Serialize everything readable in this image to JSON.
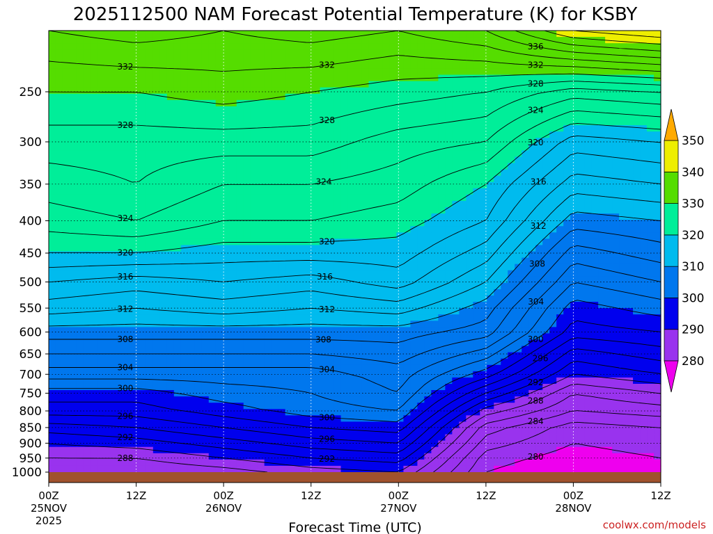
{
  "title": "2025112500 NAM Forecast Potential Temperature (K) for KSBY",
  "credit": "coolwx.com/models",
  "chart_data": {
    "type": "contour",
    "title": "2025112500 NAM Forecast Potential Temperature (K) for KSBY",
    "xlabel": "Forecast Time (UTC)",
    "ylabel": "",
    "y_scale": "log-pressure",
    "yaxis_reversed": true,
    "xlim": [
      "2025-11-25 00Z",
      "2025-11-28 12Z"
    ],
    "ylim": [
      1000,
      200
    ],
    "grid": true,
    "x_ticks": [
      {
        "time": "2025-11-25 00Z",
        "lines": [
          "00Z",
          "25NOV",
          "2025"
        ]
      },
      {
        "time": "2025-11-25 12Z",
        "lines": [
          "12Z"
        ]
      },
      {
        "time": "2025-11-26 00Z",
        "lines": [
          "00Z",
          "26NOV"
        ]
      },
      {
        "time": "2025-11-26 12Z",
        "lines": [
          "12Z"
        ]
      },
      {
        "time": "2025-11-27 00Z",
        "lines": [
          "00Z",
          "27NOV"
        ]
      },
      {
        "time": "2025-11-27 12Z",
        "lines": [
          "12Z"
        ]
      },
      {
        "time": "2025-11-28 00Z",
        "lines": [
          "00Z",
          "28NOV"
        ]
      },
      {
        "time": "2025-11-28 12Z",
        "lines": [
          "12Z"
        ]
      }
    ],
    "y_ticks": [
      250,
      300,
      350,
      400,
      450,
      500,
      550,
      600,
      650,
      700,
      750,
      800,
      850,
      900,
      950,
      1000
    ],
    "colorbar": {
      "ticks": [
        280,
        290,
        300,
        310,
        320,
        330,
        340,
        350
      ],
      "bands": [
        {
          "from": 270,
          "to": 280,
          "color": "#ee00ee"
        },
        {
          "from": 280,
          "to": 290,
          "color": "#9933ee"
        },
        {
          "from": 290,
          "to": 300,
          "color": "#0000ee"
        },
        {
          "from": 300,
          "to": 310,
          "color": "#0077ee"
        },
        {
          "from": 310,
          "to": 320,
          "color": "#00bbee"
        },
        {
          "from": 320,
          "to": 330,
          "color": "#00ee99"
        },
        {
          "from": 330,
          "to": 340,
          "color": "#55dd00"
        },
        {
          "from": 340,
          "to": 350,
          "color": "#eeee00"
        },
        {
          "from": 350,
          "to": 360,
          "color": "#ffaa00"
        }
      ]
    },
    "contour_interval_K": 2,
    "contour_levels": [
      280,
      282,
      284,
      286,
      288,
      290,
      292,
      294,
      296,
      298,
      300,
      302,
      304,
      306,
      308,
      310,
      312,
      314,
      316,
      318,
      320,
      322,
      324,
      326,
      328,
      330,
      332,
      334,
      336,
      338,
      340,
      342,
      344,
      346,
      348
    ],
    "profiles": [
      {
        "time": "2025-11-25 00Z",
        "theta_K": {
          "1000": 286,
          "950": 288,
          "900": 290,
          "850": 293,
          "800": 297,
          "750": 299,
          "700": 303,
          "650": 306,
          "600": 309,
          "550": 313,
          "500": 316,
          "450": 320,
          "400": 323,
          "350": 325,
          "300": 327,
          "250": 330,
          "200": 334
        }
      },
      {
        "time": "2025-11-25 12Z",
        "theta_K": {
          "1000": 286,
          "950": 288,
          "900": 291,
          "850": 294,
          "800": 297,
          "750": 299,
          "700": 303,
          "650": 306,
          "600": 309,
          "550": 312,
          "500": 315,
          "450": 320,
          "400": 324,
          "350": 326,
          "300": 327,
          "250": 330,
          "200": 335
        }
      },
      {
        "time": "2025-11-26 00Z",
        "theta_K": {
          "1000": 287,
          "950": 290,
          "900": 293,
          "850": 296,
          "800": 299,
          "750": 301,
          "700": 303,
          "650": 306,
          "600": 309,
          "550": 313,
          "500": 316,
          "450": 319,
          "400": 322,
          "350": 324,
          "300": 327,
          "250": 331,
          "200": 334
        }
      },
      {
        "time": "2025-11-26 12Z",
        "theta_K": {
          "1000": 289,
          "950": 292,
          "900": 295,
          "850": 298,
          "800": 301,
          "750": 302,
          "700": 303,
          "650": 306,
          "600": 309,
          "550": 312,
          "500": 315,
          "450": 319,
          "400": 322,
          "350": 324,
          "300": 327,
          "250": 330,
          "200": 335
        }
      },
      {
        "time": "2025-11-27 00Z",
        "theta_K": {
          "1000": 290,
          "950": 293,
          "900": 296,
          "850": 299,
          "800": 302,
          "750": 304,
          "700": 305,
          "650": 307,
          "600": 309,
          "550": 313,
          "500": 317,
          "450": 319,
          "400": 321,
          "350": 323,
          "300": 325,
          "250": 329,
          "200": 334
        }
      },
      {
        "time": "2025-11-27 12Z",
        "theta_K": {
          "1000": 280,
          "950": 281,
          "900": 283,
          "850": 285,
          "800": 289,
          "750": 294,
          "700": 299,
          "650": 303,
          "600": 307,
          "550": 309,
          "500": 312,
          "450": 315,
          "400": 318,
          "350": 320,
          "300": 324,
          "250": 328,
          "200": 336
        }
      },
      {
        "time": "2025-11-28 00Z",
        "theta_K": {
          "1000": 278,
          "950": 279,
          "900": 280,
          "850": 281,
          "800": 284,
          "750": 286,
          "700": 290,
          "650": 293,
          "600": 297,
          "550": 299,
          "500": 302,
          "450": 305,
          "400": 309,
          "350": 313,
          "300": 317,
          "250": 325,
          "200": 342
        }
      },
      {
        "time": "2025-11-28 12Z",
        "theta_K": {
          "1000": 279,
          "950": 280,
          "900": 281,
          "850": 282,
          "800": 285,
          "750": 288,
          "700": 292,
          "650": 295,
          "600": 298,
          "550": 301,
          "500": 304,
          "450": 307,
          "400": 310,
          "350": 314,
          "300": 318,
          "250": 326,
          "200": 344
        }
      }
    ]
  }
}
